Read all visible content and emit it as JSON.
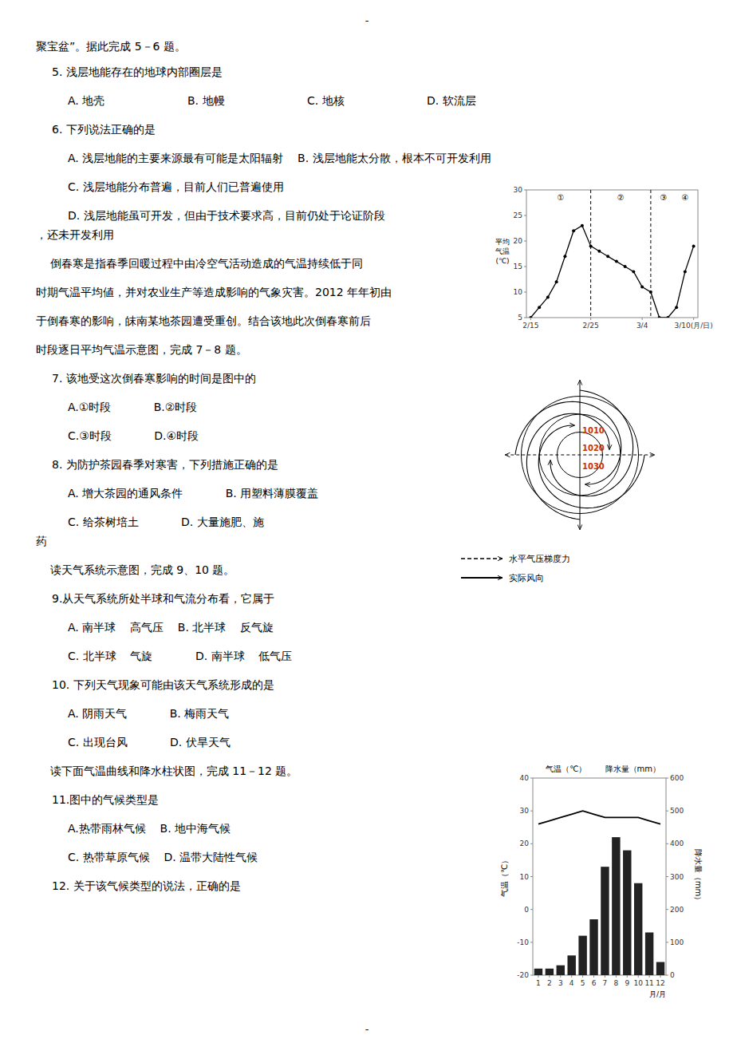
{
  "texts": [
    "聚宝盆”。据此完成 5－6 题。",
    "5. 浅层地能存在的地球内部圈层是",
    "A. 地壳",
    "B. 地幔",
    "C. 地核",
    "D. 软流层",
    "6. 下列说法正确的是",
    "A. 浅层地能的主要来源最有可能是太阳辐射    B. 浅层地能太分散，根本不可开发利用",
    "C. 浅层地能分布普遍，目前人们已普遍使用",
    "D. 浅层地能虽可开发，但由于技术要求高，目前仍处于论证阶段",
    "，还未开发利用",
    "    倒春寒是指春季回暖过程中由冷空气活动造成的气温持续低于同",
    "时期气温平均値，并对农业生产等造成影响的气象灾害。2012 年年初由",
    "于倒春寒的影响，皌南某地茶园遭受重创。结合该地此次倒春寒前后",
    "时段逐日平均气温示意图，完成 7－8 题。",
    "7. 该地受这次倒春寒影响的时间是图中的",
    "A.①时段            B.②时段",
    "C.③时段            D.④时段",
    "8. 为防护茶园春季对寒害，下列措施正确的是",
    "A. 增大茶园的通风条件            B. 用塑料薄膜覆盖",
    "C. 给茶树培土            D. 大量施肥、施",
    "药",
    "    读天气系统示意图，完成 9、10 题。",
    "9.从天气系统所处半球和气流分布看，它属于",
    "A. 南半球    高气压    B. 北半球    反气旋",
    "C. 北半球    气旋            D. 南半球    低气压",
    "10. 下列天气现象可能由该天气系统形成的是",
    "A. 阴雨天气            B. 梅雨天气",
    "C. 出现台风            D. 伏旱天气",
    "    读下面气温曲线和降水柱状图，完成 11－12 题。",
    "11.图中的气候类型是",
    "A.热带雨林气候    B. 地中海气候",
    "C. 热带草原气候    D. 温带大陆性气候",
    "12. 关于该气候类型的说法，正确的是"
  ],
  "page_marks": [
    "-",
    "-"
  ],
  "chart_data": [
    {
      "type": "line",
      "categories": [
        "2/15",
        null,
        null,
        null,
        null,
        null,
        null,
        "2/25",
        null,
        null,
        null,
        null,
        null,
        "3/4",
        null,
        null,
        null,
        null,
        null,
        "3/10(月/日)"
      ],
      "values": [
        5,
        7,
        9,
        12,
        17,
        22,
        23,
        19,
        18,
        17,
        16,
        15,
        14,
        11,
        10,
        5,
        5,
        7,
        14,
        19
      ],
      "color": "#000000",
      "marker": "dot",
      "y_label": "平均\n气温\n(℃)",
      "ylim": [
        5,
        30
      ],
      "yticks": [
        5,
        10,
        15,
        20,
        25,
        30
      ],
      "vlines": [
        7,
        14
      ],
      "annotations": [
        {
          "text": "①",
          "x": 3.5
        },
        {
          "text": "②",
          "x": 10.5
        },
        {
          "text": "③",
          "x": 15.5
        },
        {
          "text": "④",
          "x": 18.0
        }
      ],
      "grid": false
    },
    {
      "type": "diagram",
      "annotations": [
        "1010",
        "1020",
        "1030"
      ],
      "color": "#cc3300",
      "series": [
        {
          "name": "水平气压梯度力",
          "line_style": "dashed"
        },
        {
          "name": "实际风向",
          "line_style": "solid"
        }
      ]
    },
    {
      "type": "bar",
      "title": "气温（℃）",
      "subtitle": "降水量（mm）",
      "x_label": "月/月",
      "y_label": "气温（℃）",
      "y2_label": "降水量（mm）",
      "categories": [
        "1",
        "2",
        "3",
        "4",
        "5",
        "6",
        "7",
        "8",
        "9",
        "10",
        "11",
        "12"
      ],
      "series": [
        {
          "type": "bar",
          "axis": "y2",
          "color": "#222222",
          "values": [
            20,
            20,
            30,
            60,
            120,
            170,
            330,
            420,
            380,
            280,
            130,
            40
          ]
        },
        {
          "type": "line",
          "color": "#000000",
          "values": [
            26,
            27,
            28,
            29,
            30,
            29,
            28,
            28,
            28,
            28,
            27,
            26
          ]
        }
      ],
      "ylim": [
        -20,
        40
      ],
      "yticks": [
        -20,
        -10,
        0,
        10,
        20,
        30,
        40
      ],
      "y2lim": [
        0,
        600
      ],
      "y2ticks": [
        0,
        100,
        200,
        300,
        400,
        500,
        600
      ],
      "grid": false
    }
  ]
}
